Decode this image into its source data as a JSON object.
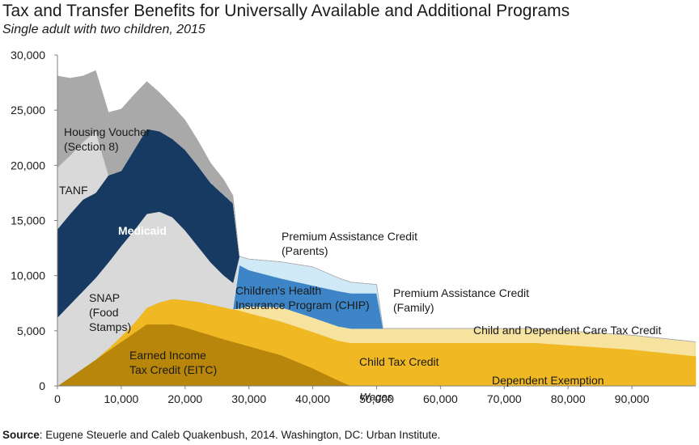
{
  "title": "Tax and Transfer Benefits for Universally Available and Additional Programs",
  "subtitle": "Single adult with two children, 2015",
  "source": {
    "prefix": "Source",
    "text": ": Eugene Steuerle and Caleb Quakenbush, 2014. Washington, DC: Urban Institute."
  },
  "chart_data": {
    "type": "area",
    "stacked": true,
    "xlabel": "Wages",
    "ylabel": "",
    "xlim": [
      0,
      100000
    ],
    "ylim": [
      0,
      30000
    ],
    "xticks": [
      "0",
      "10,000",
      "20,000",
      "30,000",
      "40,000",
      "50,000",
      "60,000",
      "70,000",
      "80,000",
      "90,000"
    ],
    "yticks": [
      "0",
      "5,000",
      "10,000",
      "15,000",
      "20,000",
      "25,000",
      "30,000"
    ],
    "grid": false,
    "x": [
      0,
      2000,
      4000,
      6000,
      8000,
      10000,
      12000,
      14000,
      16000,
      18000,
      20000,
      22000,
      24000,
      26000,
      27500,
      28500,
      30000,
      35000,
      40000,
      44000,
      46000,
      50000,
      51000,
      52000,
      55000,
      60000,
      65000,
      70000,
      75000,
      80000,
      85000,
      90000,
      95000,
      100000
    ],
    "series": [
      {
        "name": "Dependent Exemption",
        "color": "#7b5a1e",
        "values": [
          0,
          0,
          0,
          0,
          0,
          0,
          0,
          0,
          0,
          0,
          0,
          0,
          0,
          0,
          0,
          0,
          0,
          0,
          0,
          0,
          0,
          0,
          0,
          0,
          0,
          0,
          0,
          0,
          0,
          0,
          0,
          0,
          0,
          0
        ]
      },
      {
        "name": "Earned Income Tax Credit (EITC)",
        "color": "#b8860b",
        "values": [
          0,
          800,
          1600,
          2400,
          3200,
          4000,
          4800,
          5600,
          5600,
          5600,
          5300,
          4950,
          4600,
          4250,
          4000,
          3850,
          3600,
          2800,
          1600,
          500,
          0,
          0,
          0,
          0,
          0,
          0,
          0,
          0,
          0,
          0,
          0,
          0,
          0,
          0
        ]
      },
      {
        "name": "Child Tax Credit",
        "color": "#f0b823",
        "values": [
          0,
          0,
          0,
          0,
          200,
          500,
          900,
          1500,
          2000,
          2300,
          2500,
          2700,
          2800,
          2900,
          2950,
          3000,
          3000,
          3050,
          3300,
          3600,
          3900,
          3900,
          3900,
          3900,
          3900,
          3900,
          3900,
          3900,
          3900,
          3700,
          3500,
          3300,
          3000,
          2700
        ]
      },
      {
        "name": "Child and Dependent Care Tax Credit",
        "color": "#f7e3a0",
        "values": [
          0,
          0,
          0,
          0,
          0,
          0,
          0,
          0,
          0,
          0,
          0,
          0,
          0,
          0,
          0,
          200,
          600,
          1300,
          1300,
          1300,
          1300,
          1300,
          1300,
          1300,
          1300,
          1300,
          1300,
          1300,
          1300,
          1300,
          1300,
          1300,
          1300,
          1300
        ]
      },
      {
        "name": "Premium Assistance Credit (Family)",
        "color": "#cfeaf6",
        "values": [
          0,
          0,
          0,
          0,
          0,
          0,
          0,
          0,
          0,
          0,
          0,
          0,
          0,
          0,
          0,
          0,
          0,
          0,
          0,
          0,
          0,
          0,
          0,
          0,
          0,
          0,
          0,
          0,
          0,
          0,
          0,
          0,
          0,
          0
        ]
      },
      {
        "name": "Children's Health Insurance Program (CHIP)",
        "color": "#3d85c6",
        "values": [
          0,
          0,
          0,
          0,
          0,
          0,
          0,
          0,
          0,
          0,
          0,
          0,
          0,
          0,
          0,
          3900,
          3300,
          2600,
          2900,
          3200,
          3200,
          3200,
          0,
          0,
          0,
          0,
          0,
          0,
          0,
          0,
          0,
          0,
          0,
          0
        ]
      },
      {
        "name": "Premium Assistance Credit (Parents)",
        "color": "#cfeaf6",
        "values": [
          0,
          0,
          0,
          0,
          0,
          0,
          0,
          0,
          0,
          0,
          0,
          0,
          0,
          0,
          0,
          800,
          1000,
          1500,
          1700,
          1200,
          1000,
          800,
          0,
          0,
          0,
          0,
          0,
          0,
          0,
          0,
          0,
          0,
          0,
          0
        ]
      },
      {
        "name": "SNAP (Food Stamps)",
        "color": "#d9d9d9",
        "values": [
          6200,
          6600,
          7000,
          7400,
          7800,
          8200,
          8400,
          8500,
          8200,
          7400,
          6300,
          5000,
          3800,
          2900,
          2400,
          0,
          0,
          0,
          0,
          0,
          0,
          0,
          0,
          0,
          0,
          0,
          0,
          0,
          0,
          0,
          0,
          0,
          0,
          0
        ]
      },
      {
        "name": "Medicaid",
        "color": "#173a63",
        "values": [
          8000,
          8200,
          8300,
          7700,
          7900,
          6800,
          7300,
          7700,
          7300,
          7100,
          7300,
          7300,
          7200,
          7300,
          7200,
          0,
          0,
          0,
          0,
          0,
          0,
          0,
          0,
          0,
          0,
          0,
          0,
          0,
          0,
          0,
          0,
          0,
          0,
          0
        ]
      },
      {
        "name": "TANF",
        "color": "#d9d9d9",
        "values": [
          5600,
          5300,
          5200,
          5600,
          0,
          0,
          0,
          0,
          0,
          0,
          0,
          0,
          0,
          0,
          0,
          0,
          0,
          0,
          0,
          0,
          0,
          0,
          0,
          0,
          0,
          0,
          0,
          0,
          0,
          0,
          0,
          0,
          0,
          0
        ]
      },
      {
        "name": "Housing Voucher (Section 8)",
        "color": "#a9a9a9",
        "values": [
          8300,
          7000,
          6000,
          5500,
          5700,
          5600,
          5000,
          4300,
          3500,
          3000,
          2700,
          2300,
          1800,
          1400,
          700,
          0,
          0,
          0,
          0,
          0,
          0,
          0,
          0,
          0,
          0,
          0,
          0,
          0,
          0,
          0,
          0,
          0,
          0,
          0
        ]
      }
    ],
    "labels": [
      {
        "lines": [
          "Housing Voucher",
          "(Section 8)"
        ],
        "white": false
      },
      {
        "lines": [
          "TANF"
        ],
        "white": false
      },
      {
        "lines": [
          "Medicaid"
        ],
        "white": true
      },
      {
        "lines": [
          "SNAP",
          "(Food",
          "Stamps)"
        ],
        "white": false
      },
      {
        "lines": [
          "Earned Income",
          "Tax Credit (EITC)"
        ],
        "white": false
      },
      {
        "lines": [
          "Premium Assistance Credit",
          "(Parents)"
        ],
        "white": false
      },
      {
        "lines": [
          "Children's Health",
          "Insurance Program (CHIP)"
        ],
        "white": false
      },
      {
        "lines": [
          "Premium Assistance Credit",
          "(Family)"
        ],
        "white": false
      },
      {
        "lines": [
          "Child and Dependent Care Tax Credit"
        ],
        "white": false
      },
      {
        "lines": [
          "Child Tax Credit"
        ],
        "white": false
      },
      {
        "lines": [
          "Dependent Exemption"
        ],
        "white": false
      }
    ]
  }
}
